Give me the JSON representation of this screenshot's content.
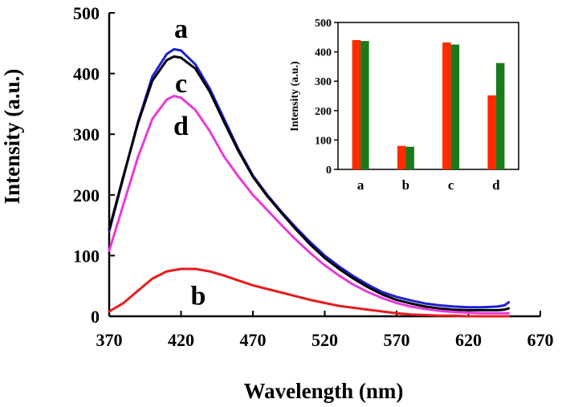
{
  "chart_data": [
    {
      "type": "line",
      "xlabel": "Wavelength (nm)",
      "ylabel": "Intensity (a.u.)",
      "xlim": [
        370,
        670
      ],
      "ylim": [
        0,
        500
      ],
      "xticks": [
        370,
        420,
        470,
        520,
        570,
        620,
        670
      ],
      "yticks": [
        0,
        100,
        200,
        300,
        400,
        500
      ],
      "grid": false,
      "series": [
        {
          "name": "a",
          "color": "#1f1fd6",
          "x": [
            370,
            380,
            390,
            400,
            410,
            415,
            420,
            430,
            440,
            450,
            460,
            470,
            480,
            490,
            500,
            510,
            520,
            530,
            540,
            550,
            560,
            570,
            580,
            590,
            600,
            610,
            620,
            630,
            640,
            645,
            648
          ],
          "y": [
            140,
            230,
            320,
            395,
            432,
            440,
            438,
            415,
            375,
            325,
            275,
            232,
            200,
            172,
            146,
            122,
            100,
            82,
            66,
            52,
            40,
            32,
            26,
            21,
            18,
            16,
            15,
            15,
            16,
            18,
            23
          ]
        },
        {
          "name": "c",
          "color": "#000000",
          "x": [
            370,
            380,
            390,
            400,
            410,
            415,
            420,
            430,
            440,
            450,
            460,
            470,
            480,
            490,
            500,
            510,
            520,
            530,
            540,
            550,
            560,
            570,
            580,
            590,
            600,
            610,
            620,
            630,
            640,
            645,
            648
          ],
          "y": [
            143,
            232,
            318,
            388,
            422,
            428,
            426,
            408,
            370,
            320,
            272,
            230,
            198,
            170,
            143,
            118,
            96,
            78,
            62,
            48,
            36,
            27,
            21,
            16,
            13,
            11,
            10,
            10,
            10,
            11,
            13
          ]
        },
        {
          "name": "d",
          "color": "#e83ad8",
          "x": [
            370,
            380,
            390,
            400,
            410,
            415,
            420,
            430,
            440,
            450,
            460,
            470,
            480,
            490,
            500,
            510,
            520,
            530,
            540,
            550,
            560,
            570,
            580,
            590,
            600,
            610,
            620,
            630,
            640,
            648
          ],
          "y": [
            108,
            185,
            262,
            325,
            357,
            363,
            360,
            340,
            305,
            263,
            230,
            200,
            175,
            150,
            126,
            104,
            84,
            67,
            52,
            40,
            30,
            22,
            16,
            12,
            9,
            7,
            6,
            5,
            5,
            5
          ]
        },
        {
          "name": "b",
          "color": "#e51d1d",
          "x": [
            370,
            380,
            390,
            400,
            410,
            420,
            430,
            440,
            450,
            460,
            470,
            480,
            490,
            500,
            510,
            520,
            530,
            540,
            550,
            560,
            570,
            580,
            590,
            600,
            610,
            620,
            630,
            640,
            648
          ],
          "y": [
            8,
            22,
            42,
            62,
            74,
            78,
            78,
            74,
            67,
            59,
            51,
            45,
            39,
            33,
            27,
            22,
            17,
            14,
            11,
            8,
            5,
            3,
            2,
            1,
            1,
            0,
            0,
            0,
            0
          ]
        }
      ],
      "curve_labels": [
        {
          "text": "a",
          "x": 420,
          "y": 475
        },
        {
          "text": "c",
          "x": 420,
          "y": 385
        },
        {
          "text": "d",
          "x": 420,
          "y": 315
        },
        {
          "text": "b",
          "x": 432,
          "y": 35
        }
      ]
    },
    {
      "type": "bar",
      "ylabel": "Intensity (a.u.)",
      "ylim": [
        0,
        500
      ],
      "yticks": [
        0,
        100,
        200,
        300,
        400,
        500
      ],
      "categories": [
        "a",
        "b",
        "c",
        "d"
      ],
      "series": [
        {
          "color": "#ff2a00",
          "values": [
            440,
            80,
            432,
            252
          ]
        },
        {
          "color": "#1a7a1a",
          "values": [
            437,
            77,
            425,
            362
          ]
        }
      ]
    }
  ]
}
